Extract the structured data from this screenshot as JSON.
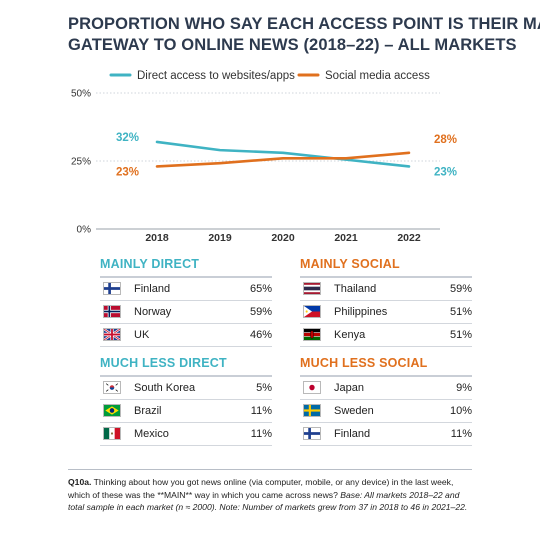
{
  "title_line1": "PROPORTION WHO SAY EACH ACCESS POINT IS THEIR MAIN",
  "title_line2": "GATEWAY TO ONLINE NEWS (2018–22) – ALL MARKETS",
  "chart_data": {
    "type": "line",
    "x": [
      "2018",
      "2019",
      "2020",
      "2021",
      "2022"
    ],
    "ylim": [
      0,
      50
    ],
    "yticks": [
      "0%",
      "25%",
      "50%"
    ],
    "grid": true,
    "legend_position": "top",
    "series": [
      {
        "name": "Direct access to websites/apps",
        "color": "#3fb3c3",
        "values": [
          32,
          29,
          28,
          25.5,
          23
        ],
        "start_label": "32%",
        "end_label": "23%"
      },
      {
        "name": "Social media access",
        "color": "#e0701e",
        "values": [
          23,
          24.2,
          26,
          26,
          28
        ],
        "start_label": "23%",
        "end_label": "28%"
      }
    ]
  },
  "tables": {
    "mainly_direct": {
      "heading": "MAINLY DIRECT",
      "rows": [
        {
          "country": "Finland",
          "value": "65%",
          "flag": "finland"
        },
        {
          "country": "Norway",
          "value": "59%",
          "flag": "norway"
        },
        {
          "country": "UK",
          "value": "46%",
          "flag": "uk"
        }
      ]
    },
    "mainly_social": {
      "heading": "MAINLY SOCIAL",
      "rows": [
        {
          "country": "Thailand",
          "value": "59%",
          "flag": "thailand"
        },
        {
          "country": "Philippines",
          "value": "51%",
          "flag": "philippines"
        },
        {
          "country": "Kenya",
          "value": "51%",
          "flag": "kenya"
        }
      ]
    },
    "less_direct": {
      "heading": "MUCH LESS DIRECT",
      "rows": [
        {
          "country": "South Korea",
          "value": "5%",
          "flag": "south-korea"
        },
        {
          "country": "Brazil",
          "value": "11%",
          "flag": "brazil"
        },
        {
          "country": "Mexico",
          "value": "11%",
          "flag": "mexico"
        }
      ]
    },
    "less_social": {
      "heading": "MUCH LESS SOCIAL",
      "rows": [
        {
          "country": "Japan",
          "value": "9%",
          "flag": "japan"
        },
        {
          "country": "Sweden",
          "value": "10%",
          "flag": "sweden"
        },
        {
          "country": "Finland",
          "value": "11%",
          "flag": "finland"
        }
      ]
    }
  },
  "footnote": {
    "q_label": "Q10a.",
    "question": " Thinking about how you got news online (via computer, mobile, or any device) in the last week, which of these was the **MAIN** way in which you came across news? ",
    "base": "Base: All markets 2018–22 and total sample in each market (n ≈ 2000). Note: Number of markets grew from 37 in 2018 to 46 in 2021–22."
  }
}
